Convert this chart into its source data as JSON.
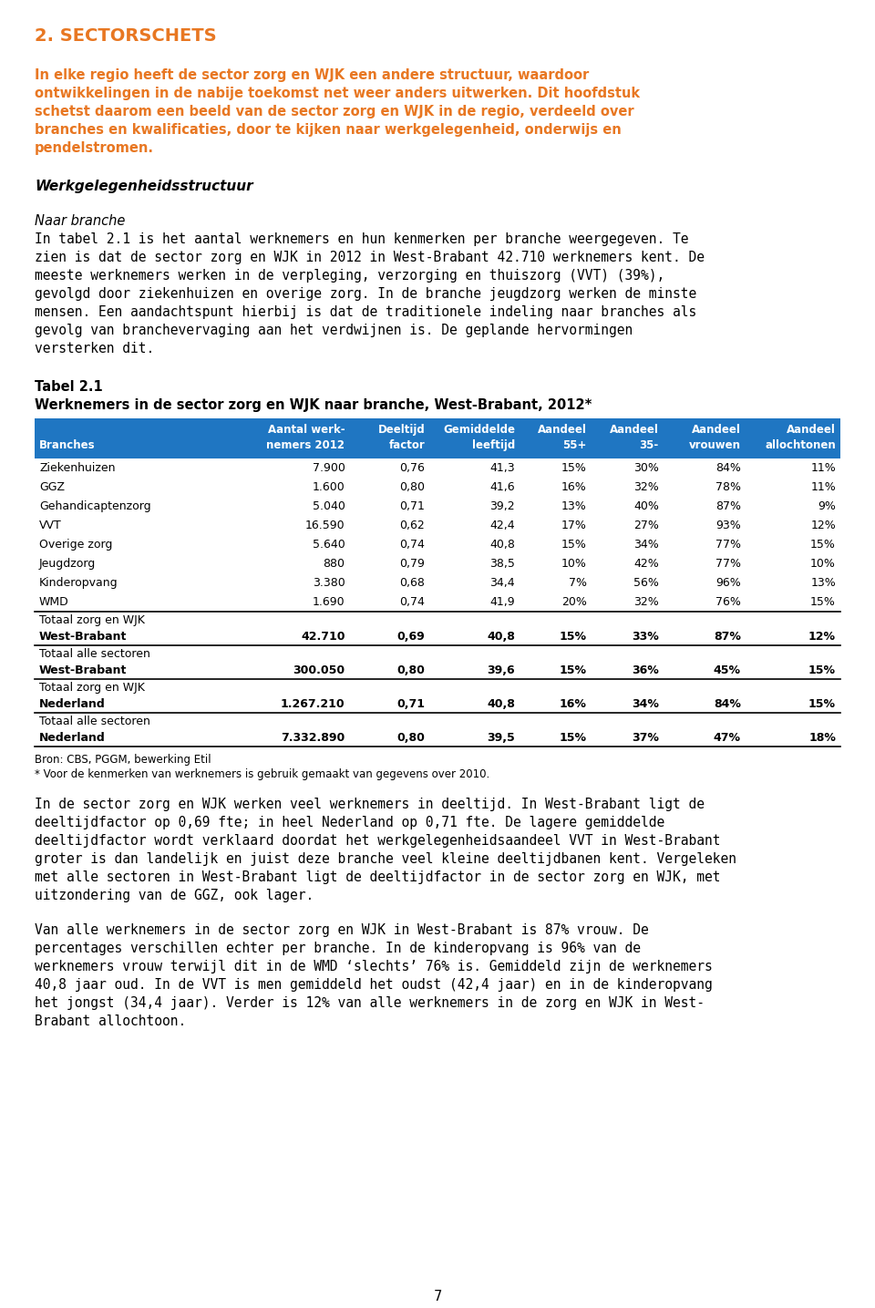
{
  "page_bg": "#ffffff",
  "section_title": "2. SECTORSCHETS",
  "section_title_color": "#E87722",
  "intro_paragraph_lines": [
    "In elke regio heeft de sector zorg en WJK een andere structuur, waardoor",
    "ontwikkelingen in de nabije toekomst net weer anders uitwerken. Dit hoofdstuk",
    "schetst daarom een beeld van de sector zorg en WJK in de regio, verdeeld over",
    "branches en kwalificaties, door te kijken naar werkgelegenheid, onderwijs en",
    "pendelstromen."
  ],
  "intro_color": "#E87722",
  "section_heading": "Werkgelegenheidsstructuur",
  "subsection_heading": "Naar branche",
  "body_para1_lines": [
    "In tabel 2.1 is het aantal werknemers en hun kenmerken per branche weergegeven. Te",
    "zien is dat de sector zorg en WJK in 2012 in West-Brabant 42.710 werknemers kent. De",
    "meeste werknemers werken in de verpleging, verzorging en thuiszorg (VVT) (39%),",
    "gevolgd door ziekenhuizen en overige zorg. In de branche jeugdzorg werken de minste",
    "mensen. Een aandachtspunt hierbij is dat de traditionele indeling naar branches als",
    "gevolg van branchevervaging aan het verdwijnen is. De geplande hervormingen",
    "versterken dit."
  ],
  "tabel_label": "Tabel 2.1",
  "tabel_subtitle": "Werknemers in de sector zorg en WJK naar branche, West-Brabant, 2012*",
  "table_header_bg": "#1F76C2",
  "table_header_color": "#ffffff",
  "table_header_row1": [
    "",
    "Aantal werk-",
    "Deeltijd",
    "Gemiddelde",
    "Aandeel",
    "Aandeel",
    "Aandeel",
    "Aandeel"
  ],
  "table_header_row2": [
    "Branches",
    "nemers 2012",
    "factor",
    "leeftijd",
    "55+",
    "35-",
    "vrouwen",
    "allochtonen"
  ],
  "table_col_align": [
    "left",
    "right",
    "right",
    "right",
    "right",
    "right",
    "right",
    "right"
  ],
  "table_rows": [
    [
      "Ziekenhuizen",
      "7.900",
      "0,76",
      "41,3",
      "15%",
      "30%",
      "84%",
      "11%"
    ],
    [
      "GGZ",
      "1.600",
      "0,80",
      "41,6",
      "16%",
      "32%",
      "78%",
      "11%"
    ],
    [
      "Gehandicaptenzorg",
      "5.040",
      "0,71",
      "39,2",
      "13%",
      "40%",
      "87%",
      "9%"
    ],
    [
      "VVT",
      "16.590",
      "0,62",
      "42,4",
      "17%",
      "27%",
      "93%",
      "12%"
    ],
    [
      "Overige zorg",
      "5.640",
      "0,74",
      "40,8",
      "15%",
      "34%",
      "77%",
      "15%"
    ],
    [
      "Jeugdzorg",
      "880",
      "0,79",
      "38,5",
      "10%",
      "42%",
      "77%",
      "10%"
    ],
    [
      "Kinderopvang",
      "3.380",
      "0,68",
      "34,4",
      "7%",
      "56%",
      "96%",
      "13%"
    ],
    [
      "WMD",
      "1.690",
      "0,74",
      "41,9",
      "20%",
      "32%",
      "76%",
      "15%"
    ]
  ],
  "totaal_rows": [
    {
      "line1": "Totaal zorg en WJK",
      "line2": "West-Brabant",
      "vals": [
        "42.710",
        "0,69",
        "40,8",
        "15%",
        "33%",
        "87%",
        "12%"
      ]
    },
    {
      "line1": "Totaal alle sectoren",
      "line2": "West-Brabant",
      "vals": [
        "300.050",
        "0,80",
        "39,6",
        "15%",
        "36%",
        "45%",
        "15%"
      ]
    },
    {
      "line1": "Totaal zorg en WJK",
      "line2": "Nederland",
      "vals": [
        "1.267.210",
        "0,71",
        "40,8",
        "16%",
        "34%",
        "84%",
        "15%"
      ]
    },
    {
      "line1": "Totaal alle sectoren",
      "line2": "Nederland",
      "vals": [
        "7.332.890",
        "0,80",
        "39,5",
        "15%",
        "37%",
        "47%",
        "18%"
      ]
    }
  ],
  "source_line1": "Bron: CBS, PGGM, bewerking Etil",
  "source_line2": "* Voor de kenmerken van werknemers is gebruik gemaakt van gegevens over 2010.",
  "body_para2_lines": [
    "In de sector zorg en WJK werken veel werknemers in deeltijd. In West-Brabant ligt de",
    "deeltijdfactor op 0,69 fte; in heel Nederland op 0,71 fte. De lagere gemiddelde",
    "deeltijdfactor wordt verklaard doordat het werkgelegenheidsaandeel VVT in West-Brabant",
    "groter is dan landelijk en juist deze branche veel kleine deeltijdbanen kent. Vergeleken",
    "met alle sectoren in West-Brabant ligt de deeltijdfactor in de sector zorg en WJK, met",
    "uitzondering van de GGZ, ook lager."
  ],
  "body_para3_lines": [
    "Van alle werknemers in de sector zorg en WJK in West-Brabant is 87% vrouw. De",
    "percentages verschillen echter per branche. In de kinderopvang is 96% van de",
    "werknemers vrouw terwijl dit in de WMD ‘slechts’ 76% is. Gemiddeld zijn de werknemers",
    "40,8 jaar oud. In de VVT is men gemiddeld het oudst (42,4 jaar) en in de kinderopvang",
    "het jongst (34,4 jaar). Verder is 12% van alle werknemers in de zorg en WJK in West-",
    "Brabant allochtoon."
  ],
  "page_number": "7",
  "body_fs": 10.5,
  "table_fs": 9.0,
  "small_fs": 8.5,
  "title_fs": 14.0
}
